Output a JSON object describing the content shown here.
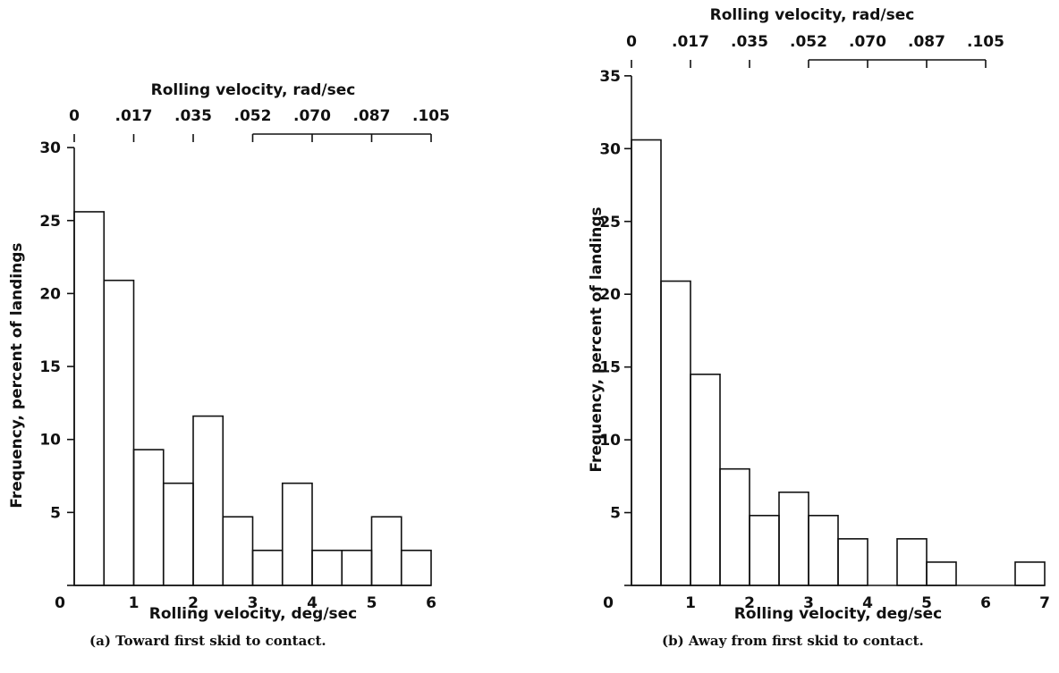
{
  "chart_data": [
    {
      "type": "bar",
      "bin_edges_deg_per_sec": [
        0,
        0.5,
        1,
        1.5,
        2,
        2.5,
        3,
        3.5,
        4,
        4.5,
        5,
        5.5,
        6
      ],
      "values": [
        25.6,
        20.9,
        9.3,
        7.0,
        11.6,
        4.7,
        2.4,
        7.0,
        2.4,
        2.4,
        4.7,
        2.4
      ],
      "xlabel": "Rolling velocity, deg/sec",
      "ylabel": "Frequency, percent of landings",
      "top_axis_label": "Rolling velocity, rad/sec",
      "xlim": [
        0,
        6
      ],
      "ylim": [
        0,
        30
      ],
      "x_ticks": [
        0,
        1,
        2,
        3,
        4,
        5,
        6
      ],
      "x_tick_labels": [
        "0",
        "1",
        "2",
        "3",
        "4",
        "5",
        "6"
      ],
      "y_ticks": [
        0,
        5,
        10,
        15,
        20,
        25,
        30
      ],
      "y_tick_labels": [
        "0",
        "5",
        "10",
        "15",
        "20",
        "25",
        "30"
      ],
      "top_ticks_deg": [
        0,
        1,
        2,
        3,
        4,
        5,
        6
      ],
      "top_tick_labels": [
        "0",
        ".017",
        ".035",
        ".052",
        ".070",
        ".087",
        ".105"
      ],
      "caption": "(a) Toward first skid to contact."
    },
    {
      "type": "bar",
      "bin_edges_deg_per_sec": [
        0,
        0.5,
        1,
        1.5,
        2,
        2.5,
        3,
        3.5,
        4,
        4.5,
        5,
        5.5,
        6,
        6.5,
        7
      ],
      "values": [
        30.6,
        20.9,
        14.5,
        8.0,
        4.8,
        6.4,
        4.8,
        3.2,
        0,
        3.2,
        1.6,
        0,
        0,
        1.6
      ],
      "xlabel": "Rolling velocity, deg/sec",
      "ylabel": "Frequency, percent of landings",
      "top_axis_label": "Rolling velocity, rad/sec",
      "xlim": [
        0,
        7
      ],
      "ylim": [
        0,
        35
      ],
      "x_ticks": [
        0,
        1,
        2,
        3,
        4,
        5,
        6,
        7
      ],
      "x_tick_labels": [
        "0",
        "1",
        "2",
        "3",
        "4",
        "5",
        "6",
        "7"
      ],
      "y_ticks": [
        0,
        5,
        10,
        15,
        20,
        25,
        30,
        35
      ],
      "y_tick_labels": [
        "",
        "5",
        "10",
        "15",
        "20",
        "25",
        "30",
        "35"
      ],
      "top_ticks_deg": [
        0,
        1,
        2,
        3,
        4,
        5,
        6
      ],
      "top_tick_labels": [
        "0",
        ".017",
        ".035",
        ".052",
        ".070",
        ".087",
        ".105"
      ],
      "caption": "(b) Away from first skid to contact."
    }
  ]
}
